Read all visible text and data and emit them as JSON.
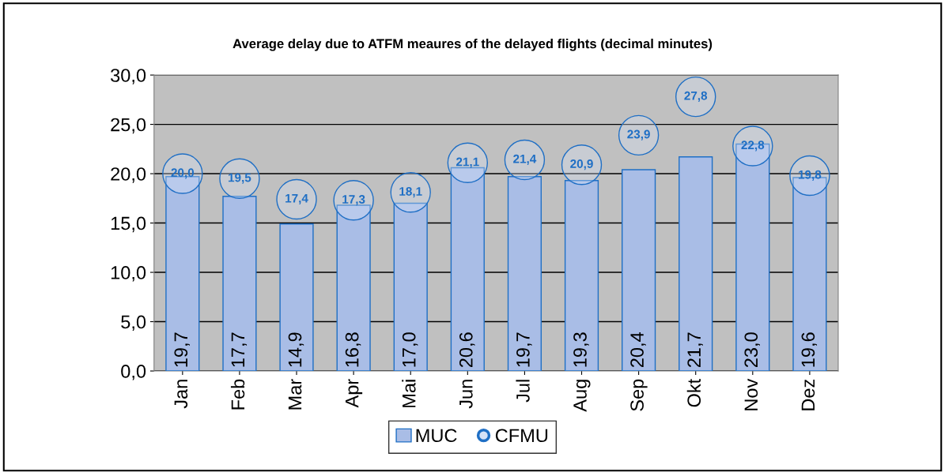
{
  "chart_data": {
    "type": "bar",
    "title": "Average delay due to ATFM meaures of the delayed flights (decimal minutes)",
    "categories": [
      "Jan",
      "Feb",
      "Mar",
      "Apr",
      "Mai",
      "Jun",
      "Jul",
      "Aug",
      "Sep",
      "Okt",
      "Nov",
      "Dez"
    ],
    "series": [
      {
        "name": "MUC",
        "color": "#a9bde6",
        "values": [
          19.7,
          17.7,
          14.9,
          16.8,
          17.0,
          20.6,
          19.7,
          19.3,
          20.4,
          21.7,
          23.0,
          19.6
        ],
        "value_labels": [
          "19,7",
          "17,7",
          "14,9",
          "16,8",
          "17,0",
          "20,6",
          "19,7",
          "19,3",
          "20,4",
          "21,7",
          "23,0",
          "19,6"
        ]
      },
      {
        "name": "CFMU",
        "type": "scatter",
        "color": "#d6e2f7",
        "values": [
          20.0,
          19.5,
          17.4,
          17.3,
          18.1,
          21.1,
          21.4,
          20.9,
          23.9,
          27.8,
          22.8,
          19.8
        ],
        "value_labels": [
          "20,0",
          "19,5",
          "17,4",
          "17,3",
          "18,1",
          "21,1",
          "21,4",
          "20,9",
          "23,9",
          "27,8",
          "22,8",
          "19,8"
        ]
      }
    ],
    "ylim": [
      0,
      30
    ],
    "yticks": [
      {
        "value": 0,
        "label": "0,0"
      },
      {
        "value": 5,
        "label": "5,0"
      },
      {
        "value": 10,
        "label": "10,0"
      },
      {
        "value": 15,
        "label": "15,0"
      },
      {
        "value": 20,
        "label": "20,0"
      },
      {
        "value": 25,
        "label": "25,0"
      },
      {
        "value": 30,
        "label": "30,0"
      }
    ],
    "grid": "y",
    "legend": "bottom",
    "marker": "circle"
  }
}
